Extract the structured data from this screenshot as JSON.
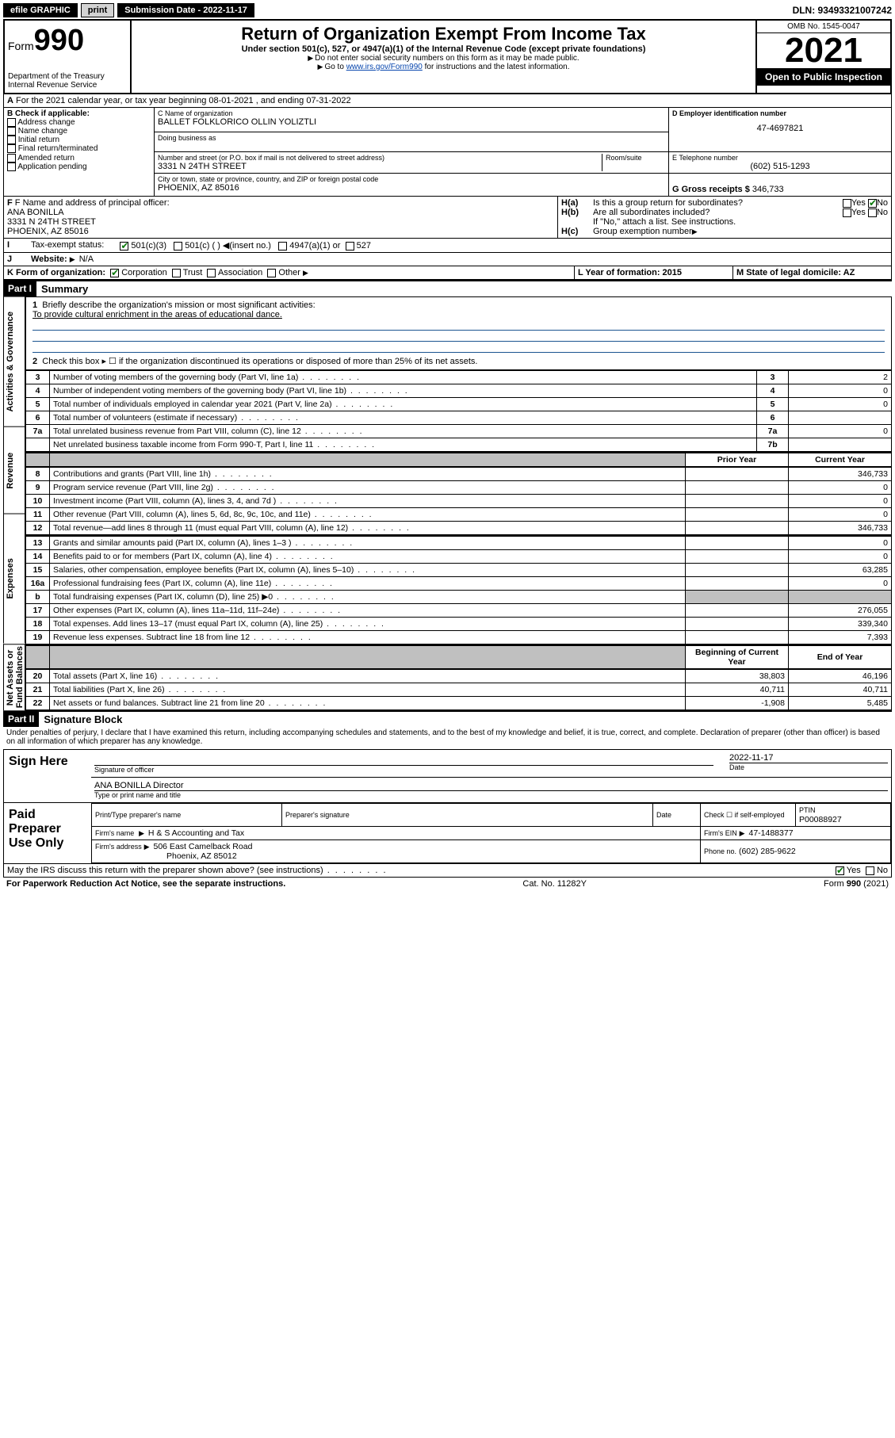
{
  "topbar": {
    "efile": "efile GRAPHIC",
    "print": "print",
    "subdate_label": "Submission Date - 2022-11-17",
    "dln": "DLN: 93493321007242"
  },
  "header": {
    "form_label": "Form",
    "form_num": "990",
    "dept": "Department of the Treasury",
    "irs": "Internal Revenue Service",
    "title": "Return of Organization Exempt From Income Tax",
    "sub1": "Under section 501(c), 527, or 4947(a)(1) of the Internal Revenue Code (except private foundations)",
    "sub2": "Do not enter social security numbers on this form as it may be made public.",
    "sub3_pre": "Go to ",
    "sub3_link": "www.irs.gov/Form990",
    "sub3_post": " for instructions and the latest information.",
    "omb": "OMB No. 1545-0047",
    "year": "2021",
    "inspection": "Open to Public Inspection"
  },
  "sectionA": {
    "line": "For the 2021 calendar year, or tax year beginning 08-01-2021  , and ending 07-31-2022"
  },
  "sectionB": {
    "title": "B Check if applicable:",
    "opts": [
      "Address change",
      "Name change",
      "Initial return",
      "Final return/terminated",
      "Amended return",
      "Application pending"
    ]
  },
  "sectionC": {
    "name_label": "C Name of organization",
    "name": "BALLET FOLKLORICO OLLIN YOLIZTLI",
    "dba_label": "Doing business as",
    "addr_label": "Number and street (or P.O. box if mail is not delivered to street address)",
    "room_label": "Room/suite",
    "addr": "3331 N 24TH STREET",
    "city_label": "City or town, state or province, country, and ZIP or foreign postal code",
    "city": "PHOENIX, AZ  85016"
  },
  "sectionD": {
    "label": "D Employer identification number",
    "val": "47-4697821"
  },
  "sectionE": {
    "label": "E Telephone number",
    "val": "(602) 515-1293"
  },
  "sectionG": {
    "label": "G Gross receipts $",
    "val": "346,733"
  },
  "sectionF": {
    "label": "F Name and address of principal officer:",
    "name": "ANA BONILLA",
    "addr1": "3331 N 24TH STREET",
    "addr2": "PHOENIX, AZ  85016"
  },
  "sectionH": {
    "a": "Is this a group return for subordinates?",
    "b": "Are all subordinates included?",
    "note": "If \"No,\" attach a list. See instructions.",
    "c": "Group exemption number",
    "yes": "Yes",
    "no": "No"
  },
  "sectionI": {
    "label": "Tax-exempt status:",
    "o1": "501(c)(3)",
    "o2": "501(c) (  )",
    "o2b": "(insert no.)",
    "o3": "4947(a)(1) or",
    "o4": "527"
  },
  "sectionJ": {
    "label": "Website:",
    "val": "N/A"
  },
  "sectionK": {
    "label": "K Form of organization:",
    "o1": "Corporation",
    "o2": "Trust",
    "o3": "Association",
    "o4": "Other"
  },
  "sectionL": {
    "label": "L Year of formation: 2015"
  },
  "sectionM": {
    "label": "M State of legal domicile: AZ"
  },
  "part1": {
    "hdr": "Part I",
    "title": "Summary",
    "q1a": "Briefly describe the organization's mission or most significant activities:",
    "q1b": "To provide cultural enrichment in the areas of educational dance.",
    "q2": "Check this box ▸ ☐  if the organization discontinued its operations or disposed of more than 25% of its net assets.",
    "rows_gov": [
      {
        "n": "3",
        "d": "Number of voting members of the governing body (Part VI, line 1a)",
        "box": "3",
        "v": "2"
      },
      {
        "n": "4",
        "d": "Number of independent voting members of the governing body (Part VI, line 1b)",
        "box": "4",
        "v": "0"
      },
      {
        "n": "5",
        "d": "Total number of individuals employed in calendar year 2021 (Part V, line 2a)",
        "box": "5",
        "v": "0"
      },
      {
        "n": "6",
        "d": "Total number of volunteers (estimate if necessary)",
        "box": "6",
        "v": ""
      },
      {
        "n": "7a",
        "d": "Total unrelated business revenue from Part VIII, column (C), line 12",
        "box": "7a",
        "v": "0"
      },
      {
        "n": "",
        "d": "Net unrelated business taxable income from Form 990-T, Part I, line 11",
        "box": "7b",
        "v": ""
      }
    ],
    "col_prior": "Prior Year",
    "col_curr": "Current Year",
    "rows_rev": [
      {
        "n": "8",
        "d": "Contributions and grants (Part VIII, line 1h)",
        "p": "",
        "c": "346,733"
      },
      {
        "n": "9",
        "d": "Program service revenue (Part VIII, line 2g)",
        "p": "",
        "c": "0"
      },
      {
        "n": "10",
        "d": "Investment income (Part VIII, column (A), lines 3, 4, and 7d )",
        "p": "",
        "c": "0"
      },
      {
        "n": "11",
        "d": "Other revenue (Part VIII, column (A), lines 5, 6d, 8c, 9c, 10c, and 11e)",
        "p": "",
        "c": "0"
      },
      {
        "n": "12",
        "d": "Total revenue—add lines 8 through 11 (must equal Part VIII, column (A), line 12)",
        "p": "",
        "c": "346,733"
      }
    ],
    "rows_exp": [
      {
        "n": "13",
        "d": "Grants and similar amounts paid (Part IX, column (A), lines 1–3 )",
        "p": "",
        "c": "0"
      },
      {
        "n": "14",
        "d": "Benefits paid to or for members (Part IX, column (A), line 4)",
        "p": "",
        "c": "0"
      },
      {
        "n": "15",
        "d": "Salaries, other compensation, employee benefits (Part IX, column (A), lines 5–10)",
        "p": "",
        "c": "63,285"
      },
      {
        "n": "16a",
        "d": "Professional fundraising fees (Part IX, column (A), line 11e)",
        "p": "",
        "c": "0"
      },
      {
        "n": "b",
        "d": "Total fundraising expenses (Part IX, column (D), line 25) ▶0",
        "p": "gray",
        "c": "gray"
      },
      {
        "n": "17",
        "d": "Other expenses (Part IX, column (A), lines 11a–11d, 11f–24e)",
        "p": "",
        "c": "276,055"
      },
      {
        "n": "18",
        "d": "Total expenses. Add lines 13–17 (must equal Part IX, column (A), line 25)",
        "p": "",
        "c": "339,340"
      },
      {
        "n": "19",
        "d": "Revenue less expenses. Subtract line 18 from line 12",
        "p": "",
        "c": "7,393"
      }
    ],
    "col_beg": "Beginning of Current Year",
    "col_end": "End of Year",
    "rows_net": [
      {
        "n": "20",
        "d": "Total assets (Part X, line 16)",
        "b": "38,803",
        "e": "46,196"
      },
      {
        "n": "21",
        "d": "Total liabilities (Part X, line 26)",
        "b": "40,711",
        "e": "40,711"
      },
      {
        "n": "22",
        "d": "Net assets or fund balances. Subtract line 21 from line 20",
        "b": "-1,908",
        "e": "5,485"
      }
    ]
  },
  "vtabs": {
    "gov": "Activities & Governance",
    "rev": "Revenue",
    "exp": "Expenses",
    "net": "Net Assets or Fund Balances"
  },
  "part2": {
    "hdr": "Part II",
    "title": "Signature Block",
    "decl": "Under penalties of perjury, I declare that I have examined this return, including accompanying schedules and statements, and to the best of my knowledge and belief, it is true, correct, and complete. Declaration of preparer (other than officer) is based on all information of which preparer has any knowledge.",
    "sign_here": "Sign Here",
    "sig_officer": "Signature of officer",
    "sig_date": "Date",
    "sig_date_val": "2022-11-17",
    "name_title": "ANA BONILLA  Director",
    "type_name": "Type or print name and title",
    "paid": "Paid Preparer Use Only",
    "prep_name": "Print/Type preparer's name",
    "prep_sig": "Preparer's signature",
    "prep_date": "Date",
    "check_if": "Check ☐ if self-employed",
    "ptin": "PTIN",
    "ptin_val": "P00088927",
    "firm_name_l": "Firm's name",
    "firm_name": "H & S Accounting and Tax",
    "firm_ein_l": "Firm's EIN",
    "firm_ein": "47-1488377",
    "firm_addr_l": "Firm's address",
    "firm_addr1": "506 East Camelback Road",
    "firm_addr2": "Phoenix, AZ  85012",
    "phone_l": "Phone no.",
    "phone": "(602) 285-9622",
    "may_irs": "May the IRS discuss this return with the preparer shown above? (see instructions)",
    "yes": "Yes",
    "no": "No"
  },
  "footer": {
    "left": "For Paperwork Reduction Act Notice, see the separate instructions.",
    "mid": "Cat. No. 11282Y",
    "right": "Form 990 (2021)"
  }
}
